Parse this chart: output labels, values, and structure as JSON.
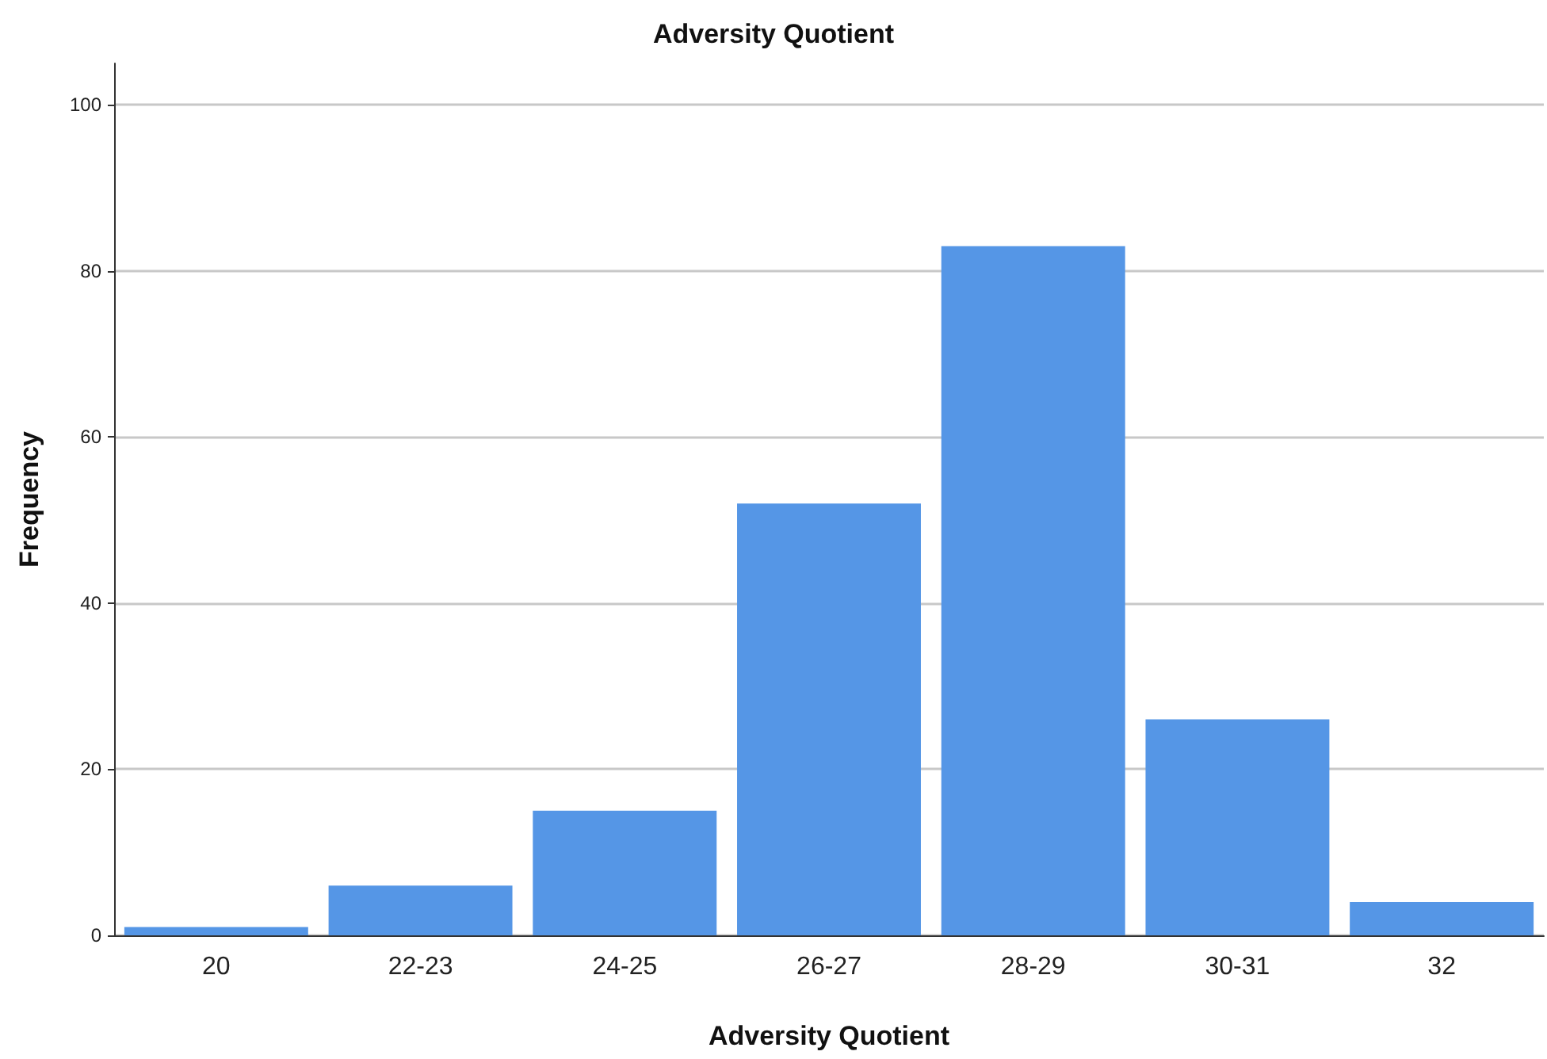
{
  "chart_data": {
    "type": "bar",
    "title": "Adversity Quotient",
    "xlabel": "Adversity Quotient",
    "ylabel": "Frequency",
    "categories": [
      "20",
      "22-23",
      "24-25",
      "26-27",
      "28-29",
      "30-31",
      "32"
    ],
    "values": [
      1,
      6,
      15,
      52,
      83,
      26,
      4
    ],
    "color": "#5596e6",
    "ylim": [
      0,
      105
    ],
    "yticks": [
      0,
      20,
      40,
      60,
      80,
      100
    ],
    "grid": "y"
  }
}
